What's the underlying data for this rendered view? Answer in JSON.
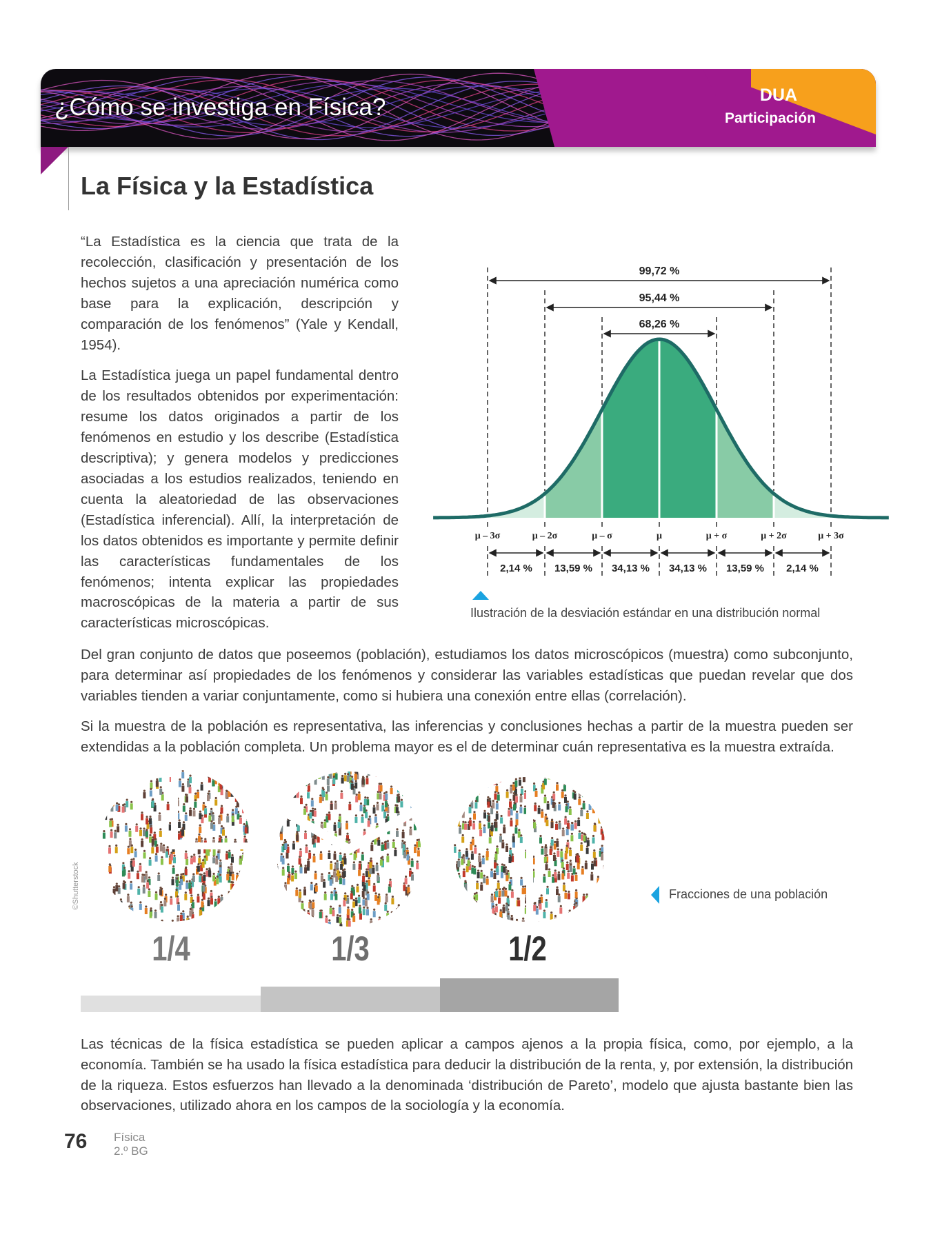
{
  "header": {
    "title": "¿Cómo se investiga en Física?",
    "badge_title": "DUA",
    "badge_subtitle": "Participación",
    "colors": {
      "purple": "#a0198e",
      "orange": "#f7a01c",
      "dark": "#0d0b10"
    }
  },
  "section_title": "La Física y la Estadística",
  "paragraphs": {
    "p1": "“La Estadística es la ciencia que trata de la recolección, clasificación y presentación de los hechos sujetos a una apreciación numérica como base para la explicación, descripción y comparación de los fenómenos” (Yale y Kendall, 1954).",
    "p2": "La Estadística juega un papel fundamental dentro de los resultados obtenidos por experimentación: resume los datos originados a partir de los fenómenos en estudio y los describe (Estadística descriptiva); y genera modelos y predicciones asociadas a los estudios realizados, teniendo en cuenta la aleatoriedad de las observaciones (Estadística inferencial). Allí, la interpretación de los datos obtenidos es importante y permite definir las características fundamentales de los fenómenos; intenta explicar las propiedades macroscópicas de la materia a partir de sus características microscópicas.",
    "p3": "Del gran conjunto de datos que poseemos (población), estudiamos los datos microscópicos (muestra) como subconjunto, para determinar así propiedades de los fenómenos y considerar las variables estadísticas que puedan revelar que dos variables tienden a variar conjuntamente, como si hubiera una conexión entre ellas (correlación).",
    "p4": "Si la muestra de la población es representativa, las inferencias y conclusiones hechas a partir de la muestra pueden ser extendidas a la población completa. Un problema mayor es el de determinar cuán representativa es la muestra extraída.",
    "p5": "Las técnicas de la física estadística se pueden aplicar a campos ajenos a la propia física, como, por ejemplo, a la economía. También se ha usado la física estadística para deducir la distribución de la renta, y, por extensión, la distribución de la riqueza. Estos esfuerzos han llevado a la denominada ‘distribución de Pareto’, modelo que ajusta bastante bien las observaciones, utilizado ahora en los campos de la sociología y la economía."
  },
  "chart_data": {
    "type": "area",
    "distribution": "normal",
    "caption": "Ilustración de la desviación estándar en una distribución normal",
    "tick_labels": [
      "μ – 3σ",
      "μ – 2σ",
      "μ – σ",
      "μ",
      "μ + σ",
      "μ + 2σ",
      "μ + 3σ"
    ],
    "ticks_sigma": [
      -3,
      -2,
      -1,
      0,
      1,
      2,
      3
    ],
    "bands": [
      {
        "from": -3,
        "to": -2,
        "label": "2,14 %",
        "value": 2.14,
        "color": "#d4ede0"
      },
      {
        "from": -2,
        "to": -1,
        "label": "13,59 %",
        "value": 13.59,
        "color": "#88cba6"
      },
      {
        "from": -1,
        "to": 0,
        "label": "34,13 %",
        "value": 34.13,
        "color": "#3aab7e"
      },
      {
        "from": 0,
        "to": 1,
        "label": "34,13 %",
        "value": 34.13,
        "color": "#3aab7e"
      },
      {
        "from": 1,
        "to": 2,
        "label": "13,59 %",
        "value": 13.59,
        "color": "#88cba6"
      },
      {
        "from": 2,
        "to": 3,
        "label": "2,14 %",
        "value": 2.14,
        "color": "#d4ede0"
      }
    ],
    "ranges": [
      {
        "k": 3,
        "label": "99,72 %",
        "value": 99.72
      },
      {
        "k": 2,
        "label": "95,44 %",
        "value": 95.44
      },
      {
        "k": 1,
        "label": "68,26 %",
        "value": 68.26
      }
    ],
    "curve_color": "#1e6b66"
  },
  "figure2": {
    "caption": "Fracciones de una población",
    "fractions": [
      "1/4",
      "1/3",
      "1/2"
    ],
    "credit": "©Shutterstock"
  },
  "footer": {
    "page_number": "76",
    "subject": "Física",
    "grade": "2.º BG"
  }
}
